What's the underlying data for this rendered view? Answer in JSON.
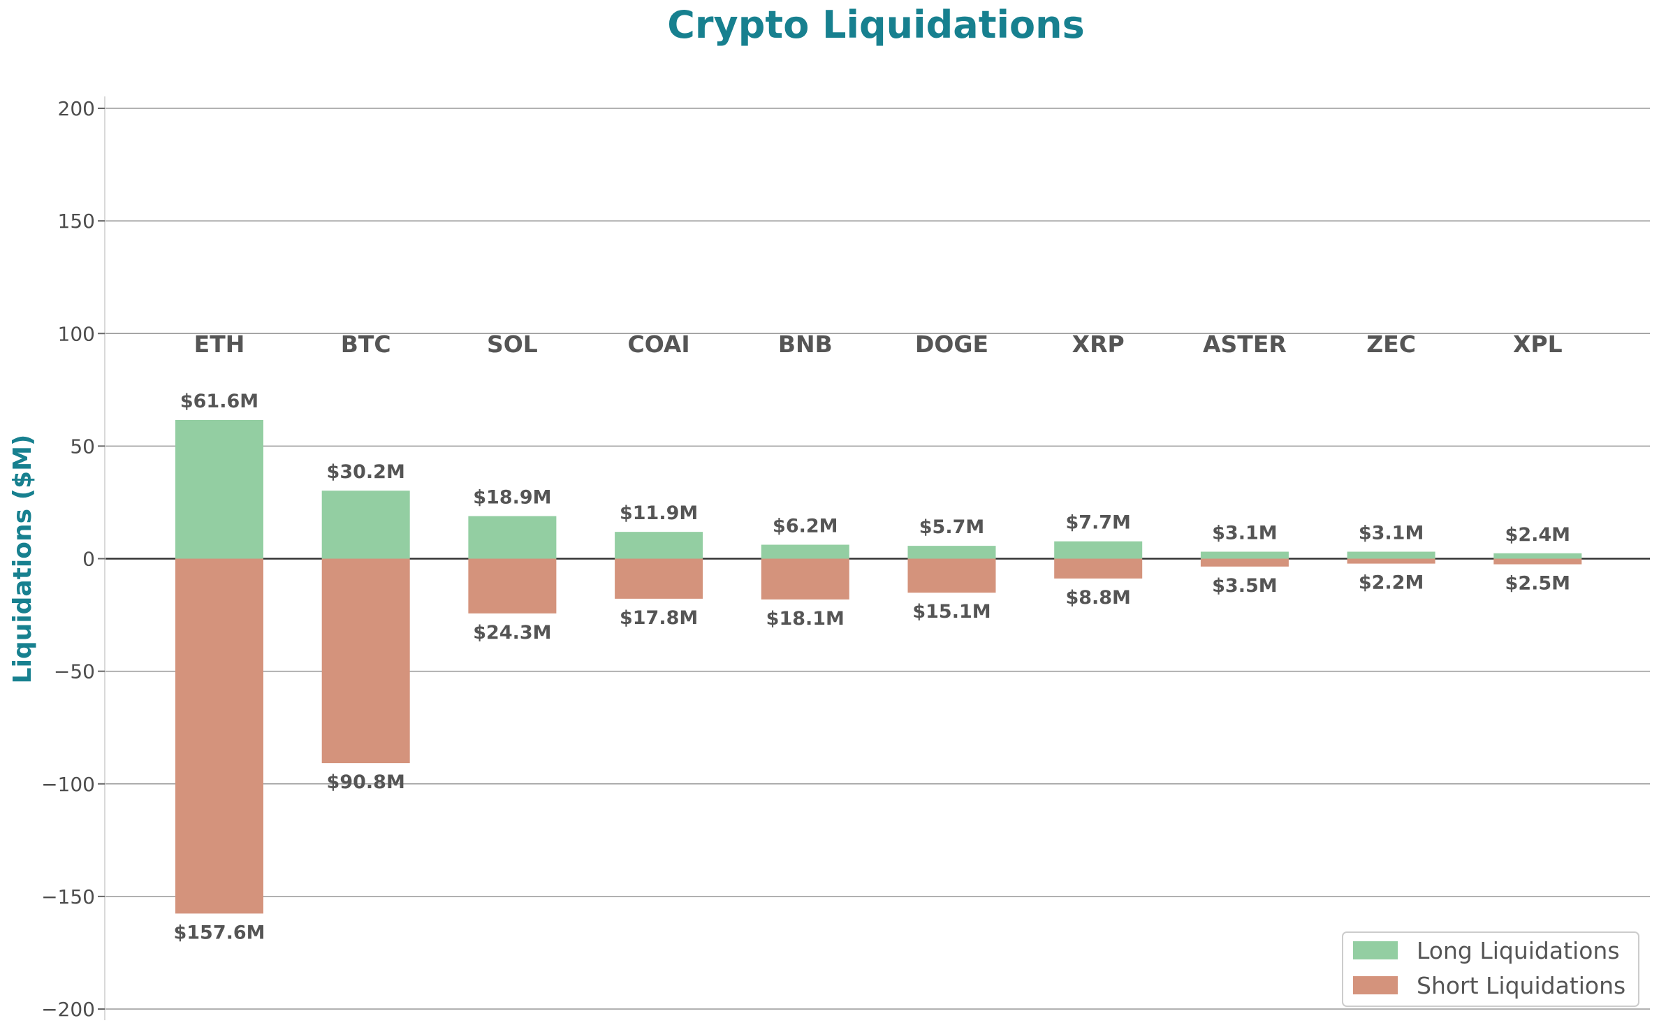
{
  "chart_data": {
    "type": "bar",
    "title": "Crypto Liquidations",
    "xlabel": "",
    "ylabel": "Liquidations ($M)",
    "ylim": [
      -200,
      200
    ],
    "yticks": [
      -200,
      -150,
      -100,
      -50,
      0,
      50,
      100,
      150,
      200
    ],
    "ytick_labels": [
      "−200",
      "−150",
      "−100",
      "−50",
      "0",
      "50",
      "100",
      "150",
      "200"
    ],
    "grid": true,
    "legend_position": "bottom-right",
    "categories": [
      "ETH",
      "BTC",
      "SOL",
      "COAI",
      "BNB",
      "DOGE",
      "XRP",
      "ASTER",
      "ZEC",
      "XPL"
    ],
    "series": [
      {
        "name": "Long Liquidations",
        "color": "#93cea2",
        "values": [
          61.6,
          30.2,
          18.9,
          11.9,
          6.2,
          5.7,
          7.7,
          3.1,
          3.1,
          2.4
        ],
        "labels": [
          "$61.6M",
          "$30.2M",
          "$18.9M",
          "$11.9M",
          "$6.2M",
          "$5.7M",
          "$7.7M",
          "$3.1M",
          "$3.1M",
          "$2.4M"
        ]
      },
      {
        "name": "Short Liquidations",
        "color": "#d4937c",
        "values": [
          -157.6,
          -90.8,
          -24.3,
          -17.8,
          -18.1,
          -15.1,
          -8.8,
          -3.5,
          -2.2,
          -2.5
        ],
        "labels": [
          "$157.6M",
          "$90.8M",
          "$24.3M",
          "$17.8M",
          "$18.1M",
          "$15.1M",
          "$8.8M",
          "$3.5M",
          "$2.2M",
          "$2.5M"
        ]
      }
    ]
  }
}
